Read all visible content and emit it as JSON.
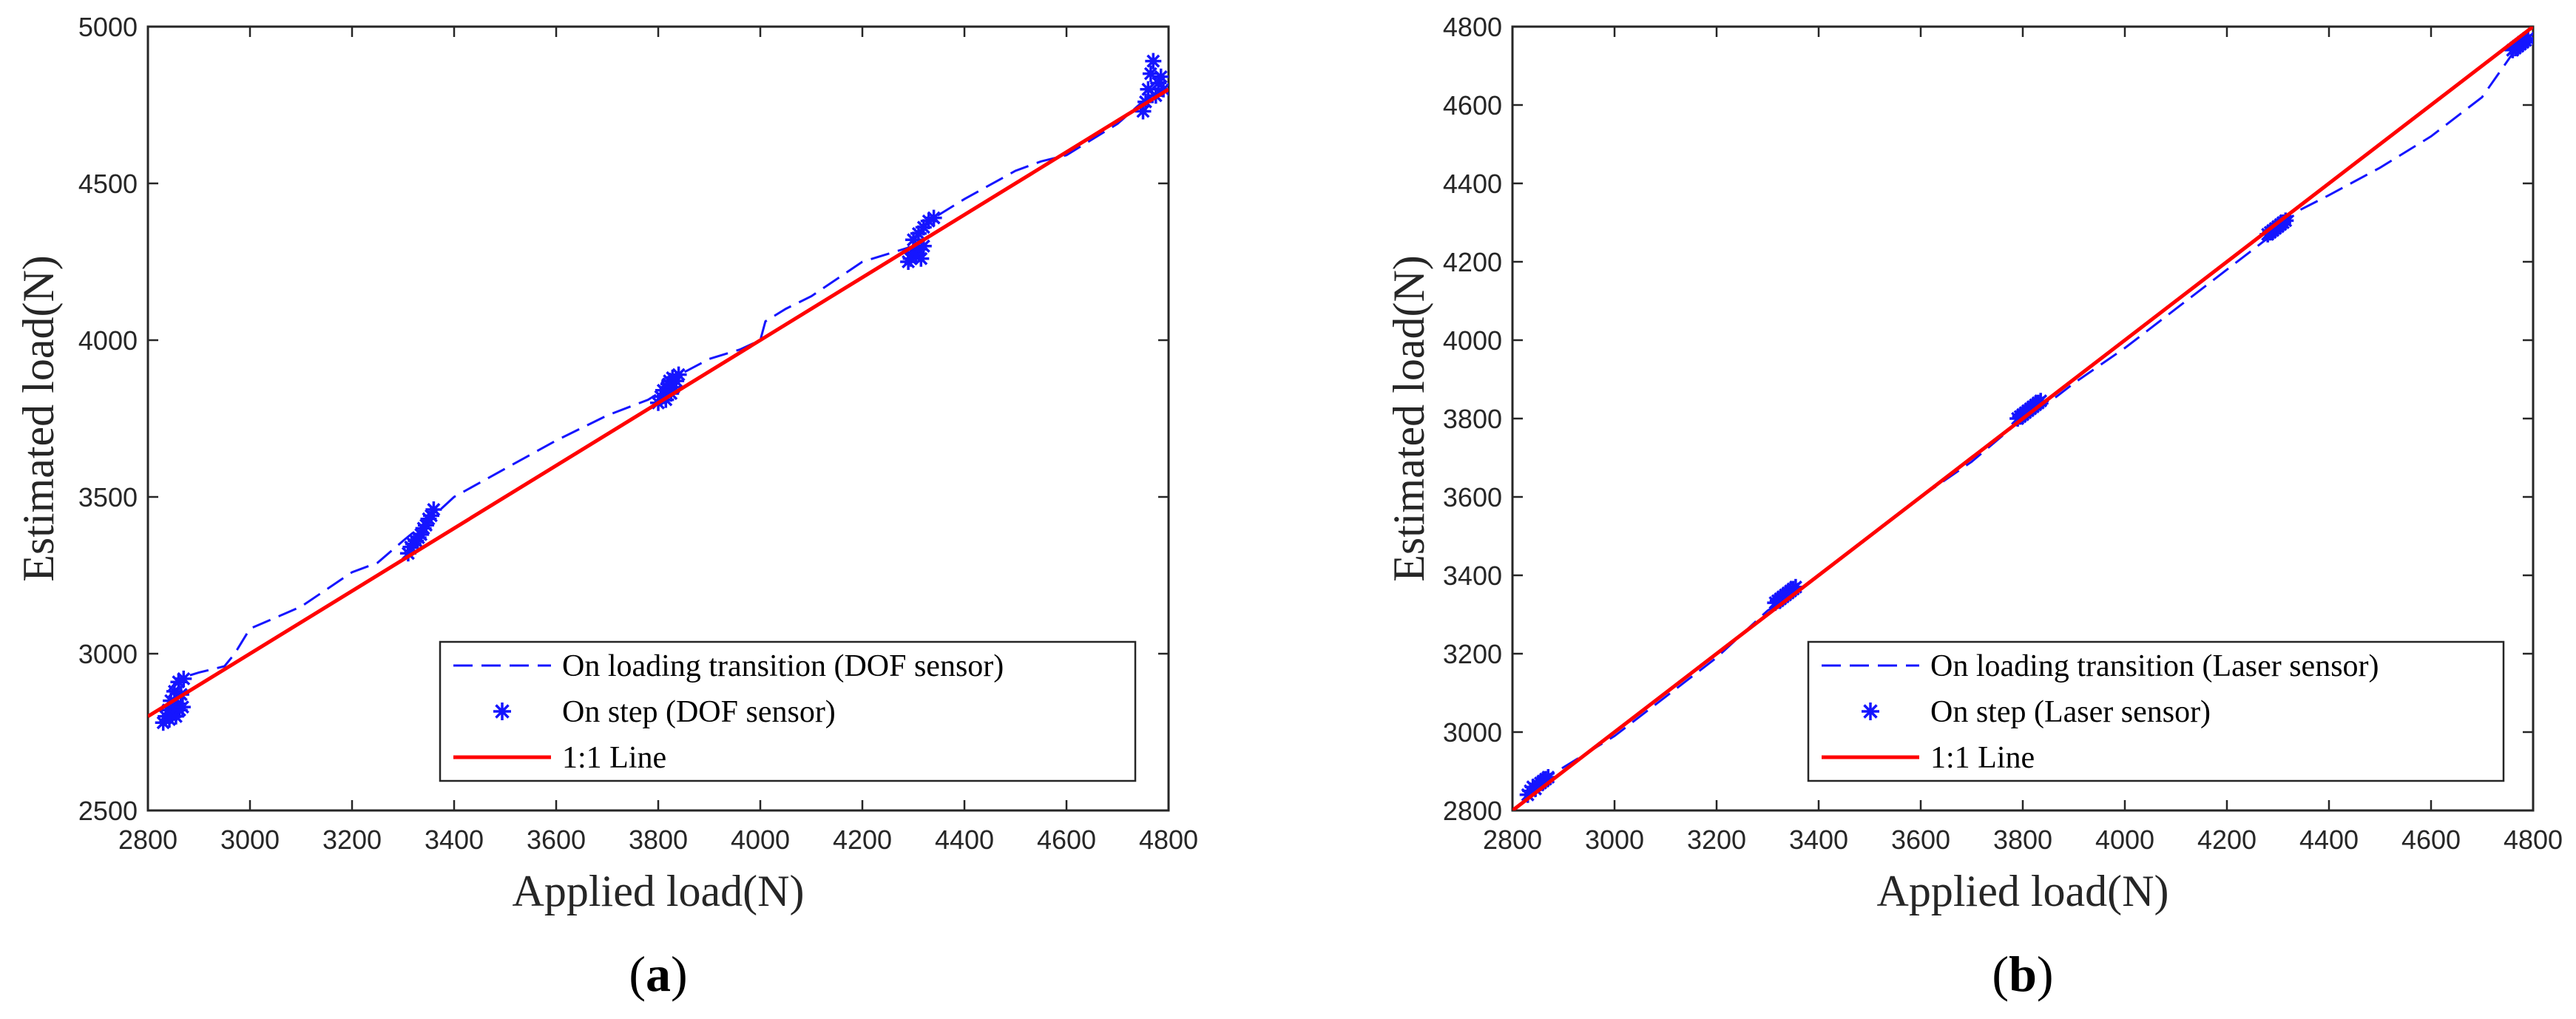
{
  "colors": {
    "estimate": "#1515ff",
    "ideal": "#ff0000",
    "axis": "#262626"
  },
  "chart_data": [
    {
      "type": "line",
      "panel": "a",
      "caption_letter": "a",
      "caption_open": "(",
      "caption_close": ")",
      "xlabel": "Applied load(N)",
      "ylabel": "Estimated load(N)",
      "xlim": [
        2800,
        4800
      ],
      "ylim": [
        2500,
        5000
      ],
      "xticks": [
        2800,
        3000,
        3200,
        3400,
        3600,
        3800,
        4000,
        4200,
        4400,
        4600,
        4800
      ],
      "yticks": [
        2500,
        3000,
        3500,
        4000,
        4500,
        5000
      ],
      "legend_position": "bottom-right",
      "series": [
        {
          "name": "On loading transition (DOF sensor)",
          "style": "dashed",
          "x": [
            2840,
            2860,
            2900,
            2950,
            2970,
            3000,
            3100,
            3200,
            3250,
            3300,
            3330,
            3360,
            3400,
            3500,
            3600,
            3700,
            3780,
            3800,
            3830,
            3900,
            3960,
            4000,
            4010,
            4050,
            4100,
            4200,
            4280,
            4300,
            4330,
            4400,
            4500,
            4550,
            4600,
            4700,
            4770,
            4790
          ],
          "y": [
            2880,
            2920,
            2940,
            2960,
            3000,
            3080,
            3150,
            3260,
            3290,
            3360,
            3400,
            3440,
            3500,
            3590,
            3680,
            3760,
            3810,
            3830,
            3880,
            3940,
            3970,
            4000,
            4060,
            4100,
            4140,
            4250,
            4290,
            4300,
            4380,
            4450,
            4540,
            4570,
            4590,
            4690,
            4790,
            4800
          ]
        },
        {
          "name": "On step (DOF sensor)",
          "style": "markers",
          "x": [
            2830,
            2835,
            2840,
            2842,
            2845,
            2848,
            2850,
            2852,
            2855,
            2858,
            2860,
            2862,
            2865,
            2868,
            2870,
            3310,
            3315,
            3320,
            3325,
            3330,
            3335,
            3340,
            3345,
            3350,
            3355,
            3360,
            3800,
            3805,
            3810,
            3815,
            3818,
            3820,
            3822,
            3825,
            3828,
            3830,
            3835,
            3840,
            4290,
            4295,
            4300,
            4305,
            4310,
            4315,
            4320,
            4300,
            4310,
            4320,
            4330,
            4340,
            4750,
            4755,
            4760,
            4765,
            4770,
            4775,
            4780,
            4785,
            4790
          ],
          "y": [
            2780,
            2800,
            2820,
            2790,
            2850,
            2810,
            2830,
            2880,
            2800,
            2840,
            2910,
            2820,
            2870,
            2830,
            2920,
            3320,
            3340,
            3350,
            3360,
            3370,
            3380,
            3400,
            3410,
            3430,
            3440,
            3460,
            3800,
            3820,
            3840,
            3810,
            3850,
            3860,
            3870,
            3830,
            3880,
            3850,
            3870,
            3890,
            4250,
            4260,
            4280,
            4270,
            4290,
            4260,
            4300,
            4320,
            4340,
            4360,
            4380,
            4390,
            4730,
            4760,
            4800,
            4850,
            4890,
            4780,
            4820,
            4840,
            4800
          ]
        },
        {
          "name": "1:1 Line",
          "style": "solid",
          "x": [
            2800,
            4800
          ],
          "y": [
            2800,
            4800
          ]
        }
      ]
    },
    {
      "type": "line",
      "panel": "b",
      "caption_letter": "b",
      "caption_open": "(",
      "caption_close": ")",
      "xlabel": "Applied load(N)",
      "ylabel": "Estimated load(N)",
      "xlim": [
        2800,
        4800
      ],
      "ylim": [
        2800,
        4800
      ],
      "xticks": [
        2800,
        3000,
        3200,
        3400,
        3600,
        3800,
        4000,
        4200,
        4400,
        4600,
        4800
      ],
      "yticks": [
        2800,
        3000,
        3200,
        3400,
        3600,
        3800,
        4000,
        4200,
        4400,
        4600,
        4800
      ],
      "legend_position": "bottom-right",
      "series": [
        {
          "name": "On loading transition (Laser sensor)",
          "style": "dashed",
          "x": [
            2850,
            2900,
            3000,
            3100,
            3200,
            3300,
            3350,
            3400,
            3500,
            3600,
            3700,
            3800,
            3850,
            3900,
            4000,
            4100,
            4200,
            4300,
            4340,
            4400,
            4500,
            4600,
            4700,
            4770
          ],
          "y": [
            2870,
            2910,
            2990,
            3090,
            3190,
            3310,
            3350,
            3400,
            3500,
            3600,
            3690,
            3800,
            3840,
            3890,
            3980,
            4080,
            4180,
            4280,
            4330,
            4370,
            4440,
            4520,
            4620,
            4750
          ]
        },
        {
          "name": "On step (Laser sensor)",
          "style": "markers",
          "x": [
            2830,
            2835,
            2840,
            2845,
            2850,
            2855,
            2860,
            2865,
            2870,
            3315,
            3320,
            3325,
            3330,
            3335,
            3340,
            3345,
            3350,
            3355,
            3790,
            3795,
            3800,
            3805,
            3810,
            3815,
            3820,
            3825,
            3830,
            3835,
            4280,
            4285,
            4290,
            4295,
            4300,
            4305,
            4310,
            4315,
            4760,
            4765,
            4770,
            4775,
            4780,
            4785,
            4790
          ],
          "y": [
            2840,
            2850,
            2860,
            2855,
            2865,
            2870,
            2875,
            2880,
            2885,
            3330,
            3335,
            3340,
            3345,
            3350,
            3355,
            3360,
            3365,
            3370,
            3800,
            3805,
            3810,
            3815,
            3820,
            3825,
            3830,
            3835,
            3840,
            3845,
            4270,
            4275,
            4280,
            4285,
            4290,
            4295,
            4300,
            4305,
            4740,
            4745,
            4750,
            4755,
            4760,
            4765,
            4770
          ]
        },
        {
          "name": "1:1 Line",
          "style": "solid",
          "x": [
            2800,
            4800
          ],
          "y": [
            2800,
            4800
          ]
        }
      ]
    }
  ]
}
